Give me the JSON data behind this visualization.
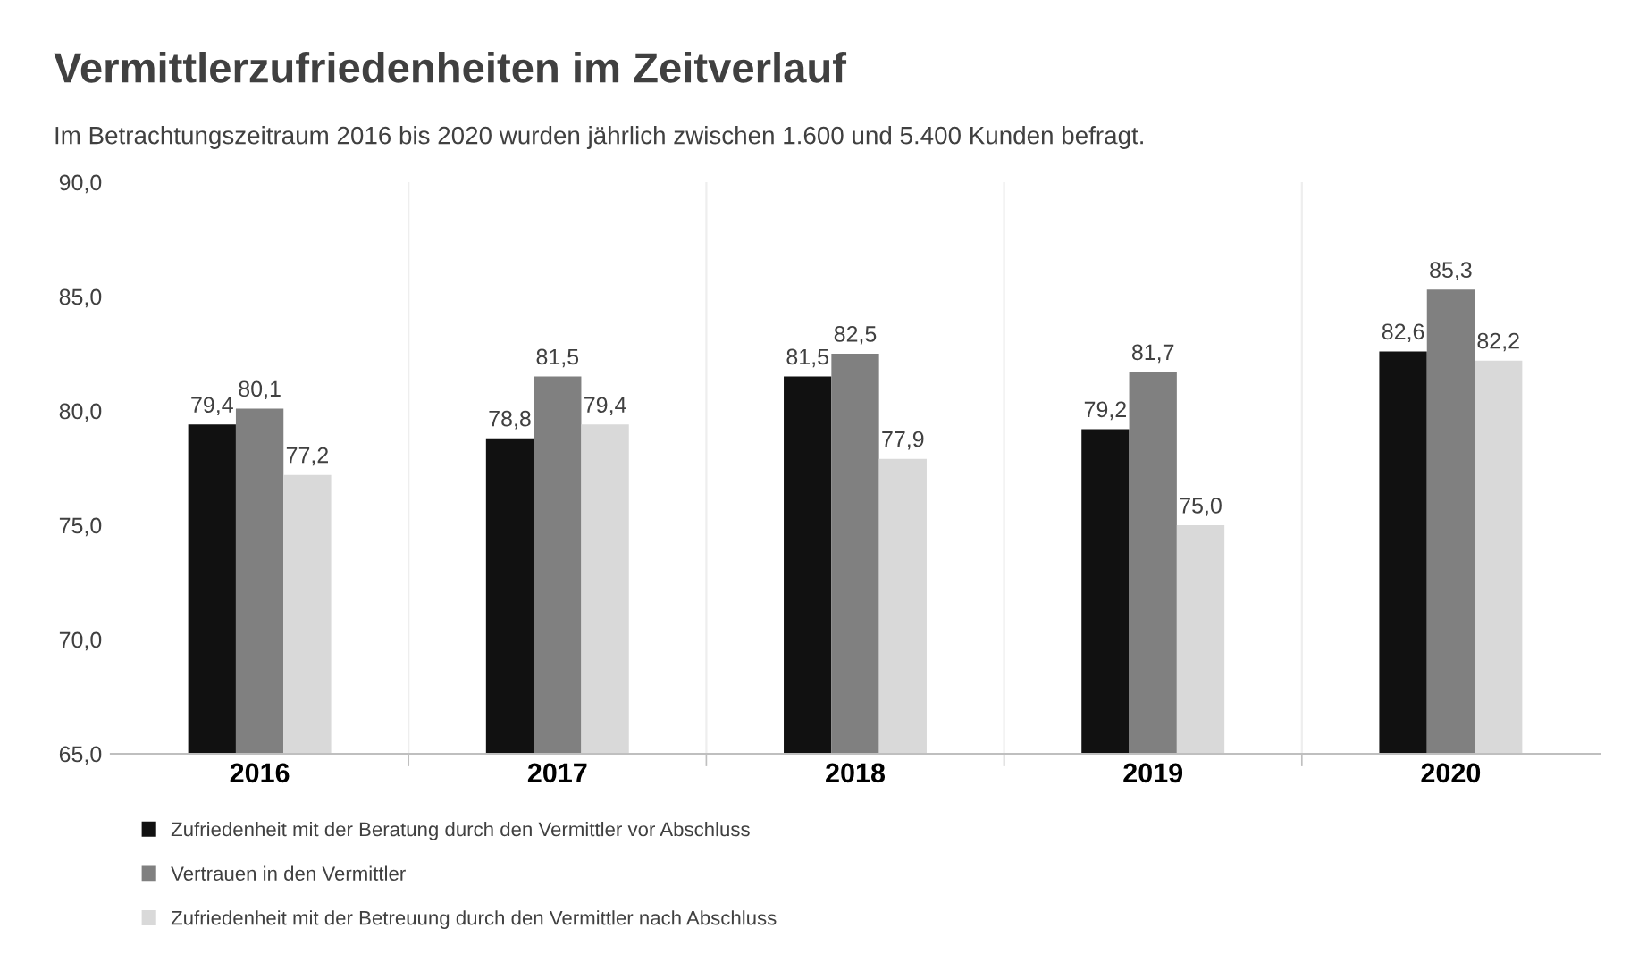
{
  "chart_data": {
    "type": "bar",
    "title": "Vermittlerzufriedenheiten im Zeitverlauf",
    "subtitle": "Im Betrachtungszeitraum 2016 bis 2020 wurden jährlich zwischen 1.600 und 5.400 Kunden befragt.",
    "categories": [
      "2016",
      "2017",
      "2018",
      "2019",
      "2020"
    ],
    "series": [
      {
        "name": "Zufriedenheit mit der Beratung durch den Vermittler vor Abschluss",
        "color": "#111111",
        "values": [
          79.4,
          78.8,
          81.5,
          79.2,
          82.6
        ],
        "value_labels": [
          "79,4",
          "78,8",
          "81,5",
          "79,2",
          "82,6"
        ]
      },
      {
        "name": "Vertrauen in den Vermittler",
        "color": "#808080",
        "values": [
          80.1,
          81.5,
          82.5,
          81.7,
          85.3
        ],
        "value_labels": [
          "80,1",
          "81,5",
          "82,5",
          "81,7",
          "85,3"
        ]
      },
      {
        "name": "Zufriedenheit mit der Betreuung durch den Vermittler nach Abschluss",
        "color": "#d9d9d9",
        "values": [
          77.2,
          79.4,
          77.9,
          75.0,
          82.2
        ],
        "value_labels": [
          "77,2",
          "79,4",
          "77,9",
          "75,0",
          "82,2"
        ]
      }
    ],
    "ylim": [
      65,
      90
    ],
    "yticks": [
      {
        "value": 65,
        "label": "65,0"
      },
      {
        "value": 70,
        "label": "70,0"
      },
      {
        "value": 75,
        "label": "75,0"
      },
      {
        "value": 80,
        "label": "80,0"
      },
      {
        "value": 85,
        "label": "85,0"
      },
      {
        "value": 90,
        "label": "90,0"
      }
    ],
    "grid": false,
    "legend": "bottom"
  }
}
